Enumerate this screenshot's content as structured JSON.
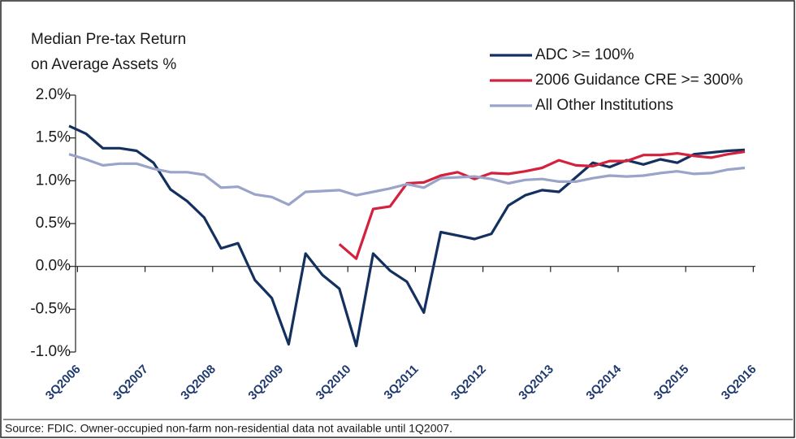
{
  "chart_data": {
    "type": "line",
    "y_label": [
      "Median Pre-tax Return",
      "on Average Assets %"
    ],
    "source": "Source: FDIC. Owner-occupied non-farm non-residential data not available until 1Q2007.",
    "categories": [
      "3Q2006",
      null,
      null,
      null,
      "3Q2007",
      null,
      null,
      null,
      "3Q2008",
      null,
      null,
      null,
      "3Q2009",
      null,
      null,
      null,
      "3Q2010",
      null,
      null,
      null,
      "3Q2011",
      null,
      null,
      null,
      "3Q2012",
      null,
      null,
      null,
      "3Q2013",
      null,
      null,
      null,
      "3Q2014",
      null,
      null,
      null,
      "3Q2015",
      null,
      null,
      null,
      "3Q2016"
    ],
    "series": [
      {
        "name": "ADC >= 100%",
        "color": "#13305f",
        "values": [
          1.64,
          1.55,
          1.38,
          1.38,
          1.35,
          1.21,
          0.9,
          0.76,
          0.57,
          0.21,
          0.27,
          -0.16,
          -0.37,
          -0.91,
          0.15,
          -0.1,
          -0.26,
          -0.93,
          0.15,
          -0.05,
          -0.18,
          -0.54,
          0.4,
          0.36,
          0.32,
          0.38,
          0.71,
          0.83,
          0.89,
          0.87,
          1.04,
          1.21,
          1.16,
          1.24,
          1.19,
          1.25,
          1.21,
          1.31,
          1.33,
          1.35,
          1.36
        ]
      },
      {
        "name": "2006 Guidance CRE >= 300%",
        "color": "#d4213d",
        "values": [
          null,
          null,
          null,
          null,
          null,
          null,
          null,
          null,
          null,
          null,
          null,
          null,
          null,
          null,
          null,
          null,
          0.26,
          0.09,
          0.67,
          0.7,
          0.97,
          0.98,
          1.06,
          1.1,
          1.02,
          1.09,
          1.08,
          1.11,
          1.15,
          1.24,
          1.18,
          1.17,
          1.23,
          1.23,
          1.3,
          1.3,
          1.32,
          1.29,
          1.27,
          1.31,
          1.34
        ]
      },
      {
        "name": "All Other Institutions",
        "color": "#9aa3c8",
        "values": [
          1.31,
          1.25,
          1.18,
          1.2,
          1.2,
          1.14,
          1.1,
          1.1,
          1.07,
          0.92,
          0.93,
          0.84,
          0.81,
          0.72,
          0.87,
          0.88,
          0.89,
          0.83,
          0.87,
          0.91,
          0.96,
          0.92,
          1.03,
          1.04,
          1.05,
          1.02,
          0.97,
          1.01,
          1.02,
          0.99,
          0.99,
          1.03,
          1.06,
          1.05,
          1.06,
          1.09,
          1.11,
          1.08,
          1.09,
          1.13,
          1.15
        ]
      }
    ],
    "ylim": [
      -1,
      2
    ],
    "yticks": [
      {
        "value": -1,
        "label": "-1.0%"
      },
      {
        "value": -0.5,
        "label": "-0.5%"
      },
      {
        "value": 0,
        "label": "0.0%"
      },
      {
        "value": 0.5,
        "label": "0.5%"
      },
      {
        "value": 1,
        "label": "1.0%"
      },
      {
        "value": 1.5,
        "label": "1.5%"
      },
      {
        "value": 2,
        "label": "2.0%"
      }
    ],
    "legend": "upper right"
  }
}
